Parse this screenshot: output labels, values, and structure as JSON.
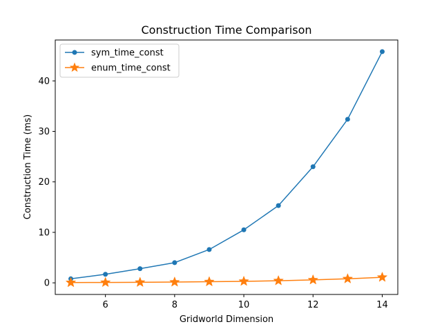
{
  "chart_data": {
    "type": "line",
    "title": "Construction Time Comparison",
    "xlabel": "Gridworld Dimension",
    "ylabel": "Construction Time (ms)",
    "xlim": [
      4.55,
      14.45
    ],
    "ylim": [
      -2.3,
      48.1
    ],
    "xticks": [
      6,
      8,
      10,
      12,
      14
    ],
    "yticks": [
      0,
      10,
      20,
      30,
      40
    ],
    "x": [
      5,
      6,
      7,
      8,
      9,
      10,
      11,
      12,
      13,
      14
    ],
    "grid": false,
    "legend_position": "top-left",
    "series": [
      {
        "name": "sym_time_const",
        "values": [
          0.8,
          1.7,
          2.8,
          4.0,
          6.6,
          10.5,
          15.3,
          23.0,
          32.4,
          45.8
        ],
        "color": "#1f77b4",
        "marker": "circle"
      },
      {
        "name": "enum_time_const",
        "values": [
          0.05,
          0.08,
          0.1,
          0.15,
          0.22,
          0.3,
          0.42,
          0.58,
          0.8,
          1.1
        ],
        "color": "#ff7f0e",
        "marker": "star"
      }
    ]
  }
}
